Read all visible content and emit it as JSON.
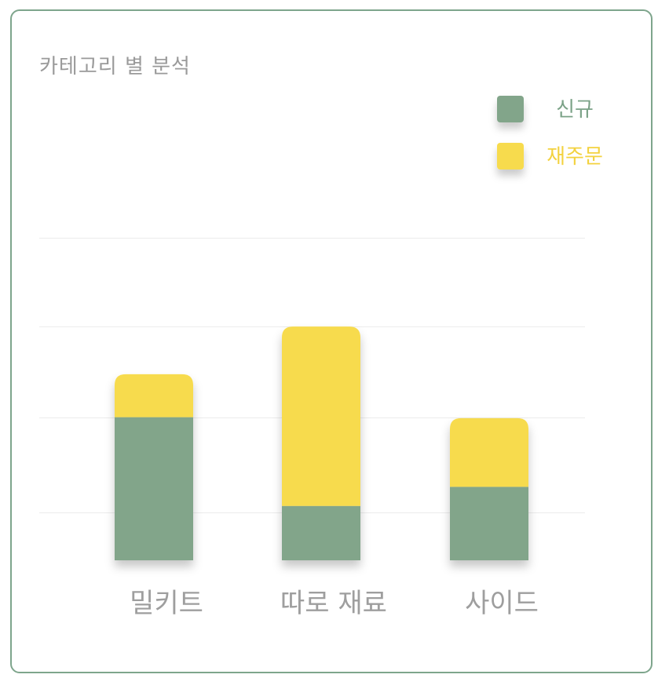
{
  "chart_data": {
    "type": "bar",
    "stacked": true,
    "title": "카테고리 별 분석",
    "categories": [
      "밀키트",
      "따로 재료",
      "사이드"
    ],
    "series": [
      {
        "name": "신규",
        "color": "#82a58a",
        "values": [
          150,
          57,
          77
        ]
      },
      {
        "name": "재주문",
        "color": "#f7db4d",
        "values": [
          45,
          188,
          72
        ]
      }
    ],
    "ylim": [
      0,
      340
    ],
    "grid": true,
    "legend_position": "top-right",
    "xlabel": "",
    "ylabel": ""
  }
}
